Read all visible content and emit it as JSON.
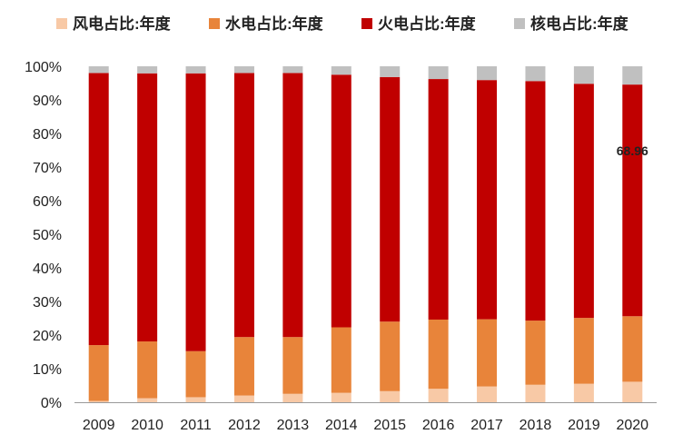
{
  "chart_data": {
    "type": "bar",
    "stacked": true,
    "categories": [
      "2009",
      "2010",
      "2011",
      "2012",
      "2013",
      "2014",
      "2015",
      "2016",
      "2017",
      "2018",
      "2019",
      "2020"
    ],
    "series": [
      {
        "name": "风电占比:年度",
        "color": "#f8c9a6",
        "values": [
          0.4,
          1.2,
          1.5,
          2.0,
          2.5,
          2.8,
          3.3,
          4.0,
          4.7,
          5.2,
          5.5,
          6.1
        ]
      },
      {
        "name": "水电占比:年度",
        "color": "#e8843a",
        "values": [
          16.6,
          16.9,
          13.7,
          17.4,
          16.9,
          19.5,
          20.7,
          20.6,
          20.0,
          19.1,
          19.6,
          19.5
        ]
      },
      {
        "name": "火电占比:年度",
        "color": "#c00000",
        "values": [
          81.0,
          79.8,
          82.7,
          78.6,
          78.6,
          75.2,
          72.8,
          71.6,
          71.2,
          71.3,
          69.7,
          68.96
        ]
      },
      {
        "name": "核电占比:年度",
        "color": "#c0c0c0",
        "values": [
          2.0,
          2.1,
          2.1,
          2.0,
          2.0,
          2.5,
          3.2,
          3.8,
          4.1,
          4.4,
          5.2,
          5.44
        ]
      }
    ],
    "y_ticks": [
      "0%",
      "10%",
      "20%",
      "30%",
      "40%",
      "50%",
      "60%",
      "70%",
      "80%",
      "90%",
      "100%"
    ],
    "ylim": [
      0,
      100
    ],
    "legend_position": "top",
    "annotations": [
      {
        "category": "2020",
        "series": "火电占比:年度",
        "text": "68.96"
      }
    ],
    "grid": false
  }
}
